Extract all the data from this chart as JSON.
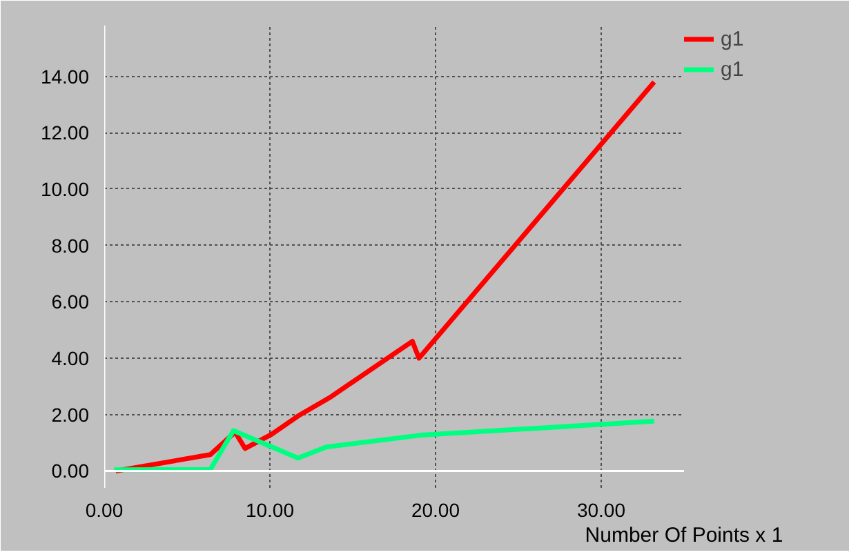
{
  "chart_data": {
    "type": "line",
    "xlabel": "Number Of Points x 1",
    "xlim": [
      0,
      35
    ],
    "ylim": [
      -0.6,
      15.8
    ],
    "xticks": [
      {
        "value": 0,
        "label": "0.00"
      },
      {
        "value": 10,
        "label": "10.00"
      },
      {
        "value": 20,
        "label": "20.00"
      },
      {
        "value": 30,
        "label": "30.00"
      }
    ],
    "yticks": [
      {
        "value": 0,
        "label": "0.00"
      },
      {
        "value": 2,
        "label": "2.00"
      },
      {
        "value": 4,
        "label": "4.00"
      },
      {
        "value": 6,
        "label": "6.00"
      },
      {
        "value": 8,
        "label": "8.00"
      },
      {
        "value": 10,
        "label": "10.00"
      },
      {
        "value": 12,
        "label": "12.00"
      },
      {
        "value": 14,
        "label": "14.00"
      }
    ],
    "grid": true,
    "legend": "top right",
    "marker": "none",
    "line_style": "solid",
    "series": [
      {
        "name": "g1",
        "color": "#ff0000",
        "x": [
          0.7,
          6.4,
          7.9,
          8.5,
          10.1,
          11.7,
          13.6,
          18.6,
          19.0,
          33.2
        ],
        "values": [
          0,
          0.58,
          1.38,
          0.8,
          1.3,
          1.95,
          2.6,
          4.6,
          4.0,
          13.8
        ]
      },
      {
        "name": "g1",
        "color": "#00ff80",
        "x": [
          0.6,
          6.4,
          7.8,
          11.7,
          13.4,
          19.1,
          33.2
        ],
        "values": [
          0.04,
          0.05,
          1.43,
          0.46,
          0.85,
          1.27,
          1.77
        ]
      }
    ]
  }
}
